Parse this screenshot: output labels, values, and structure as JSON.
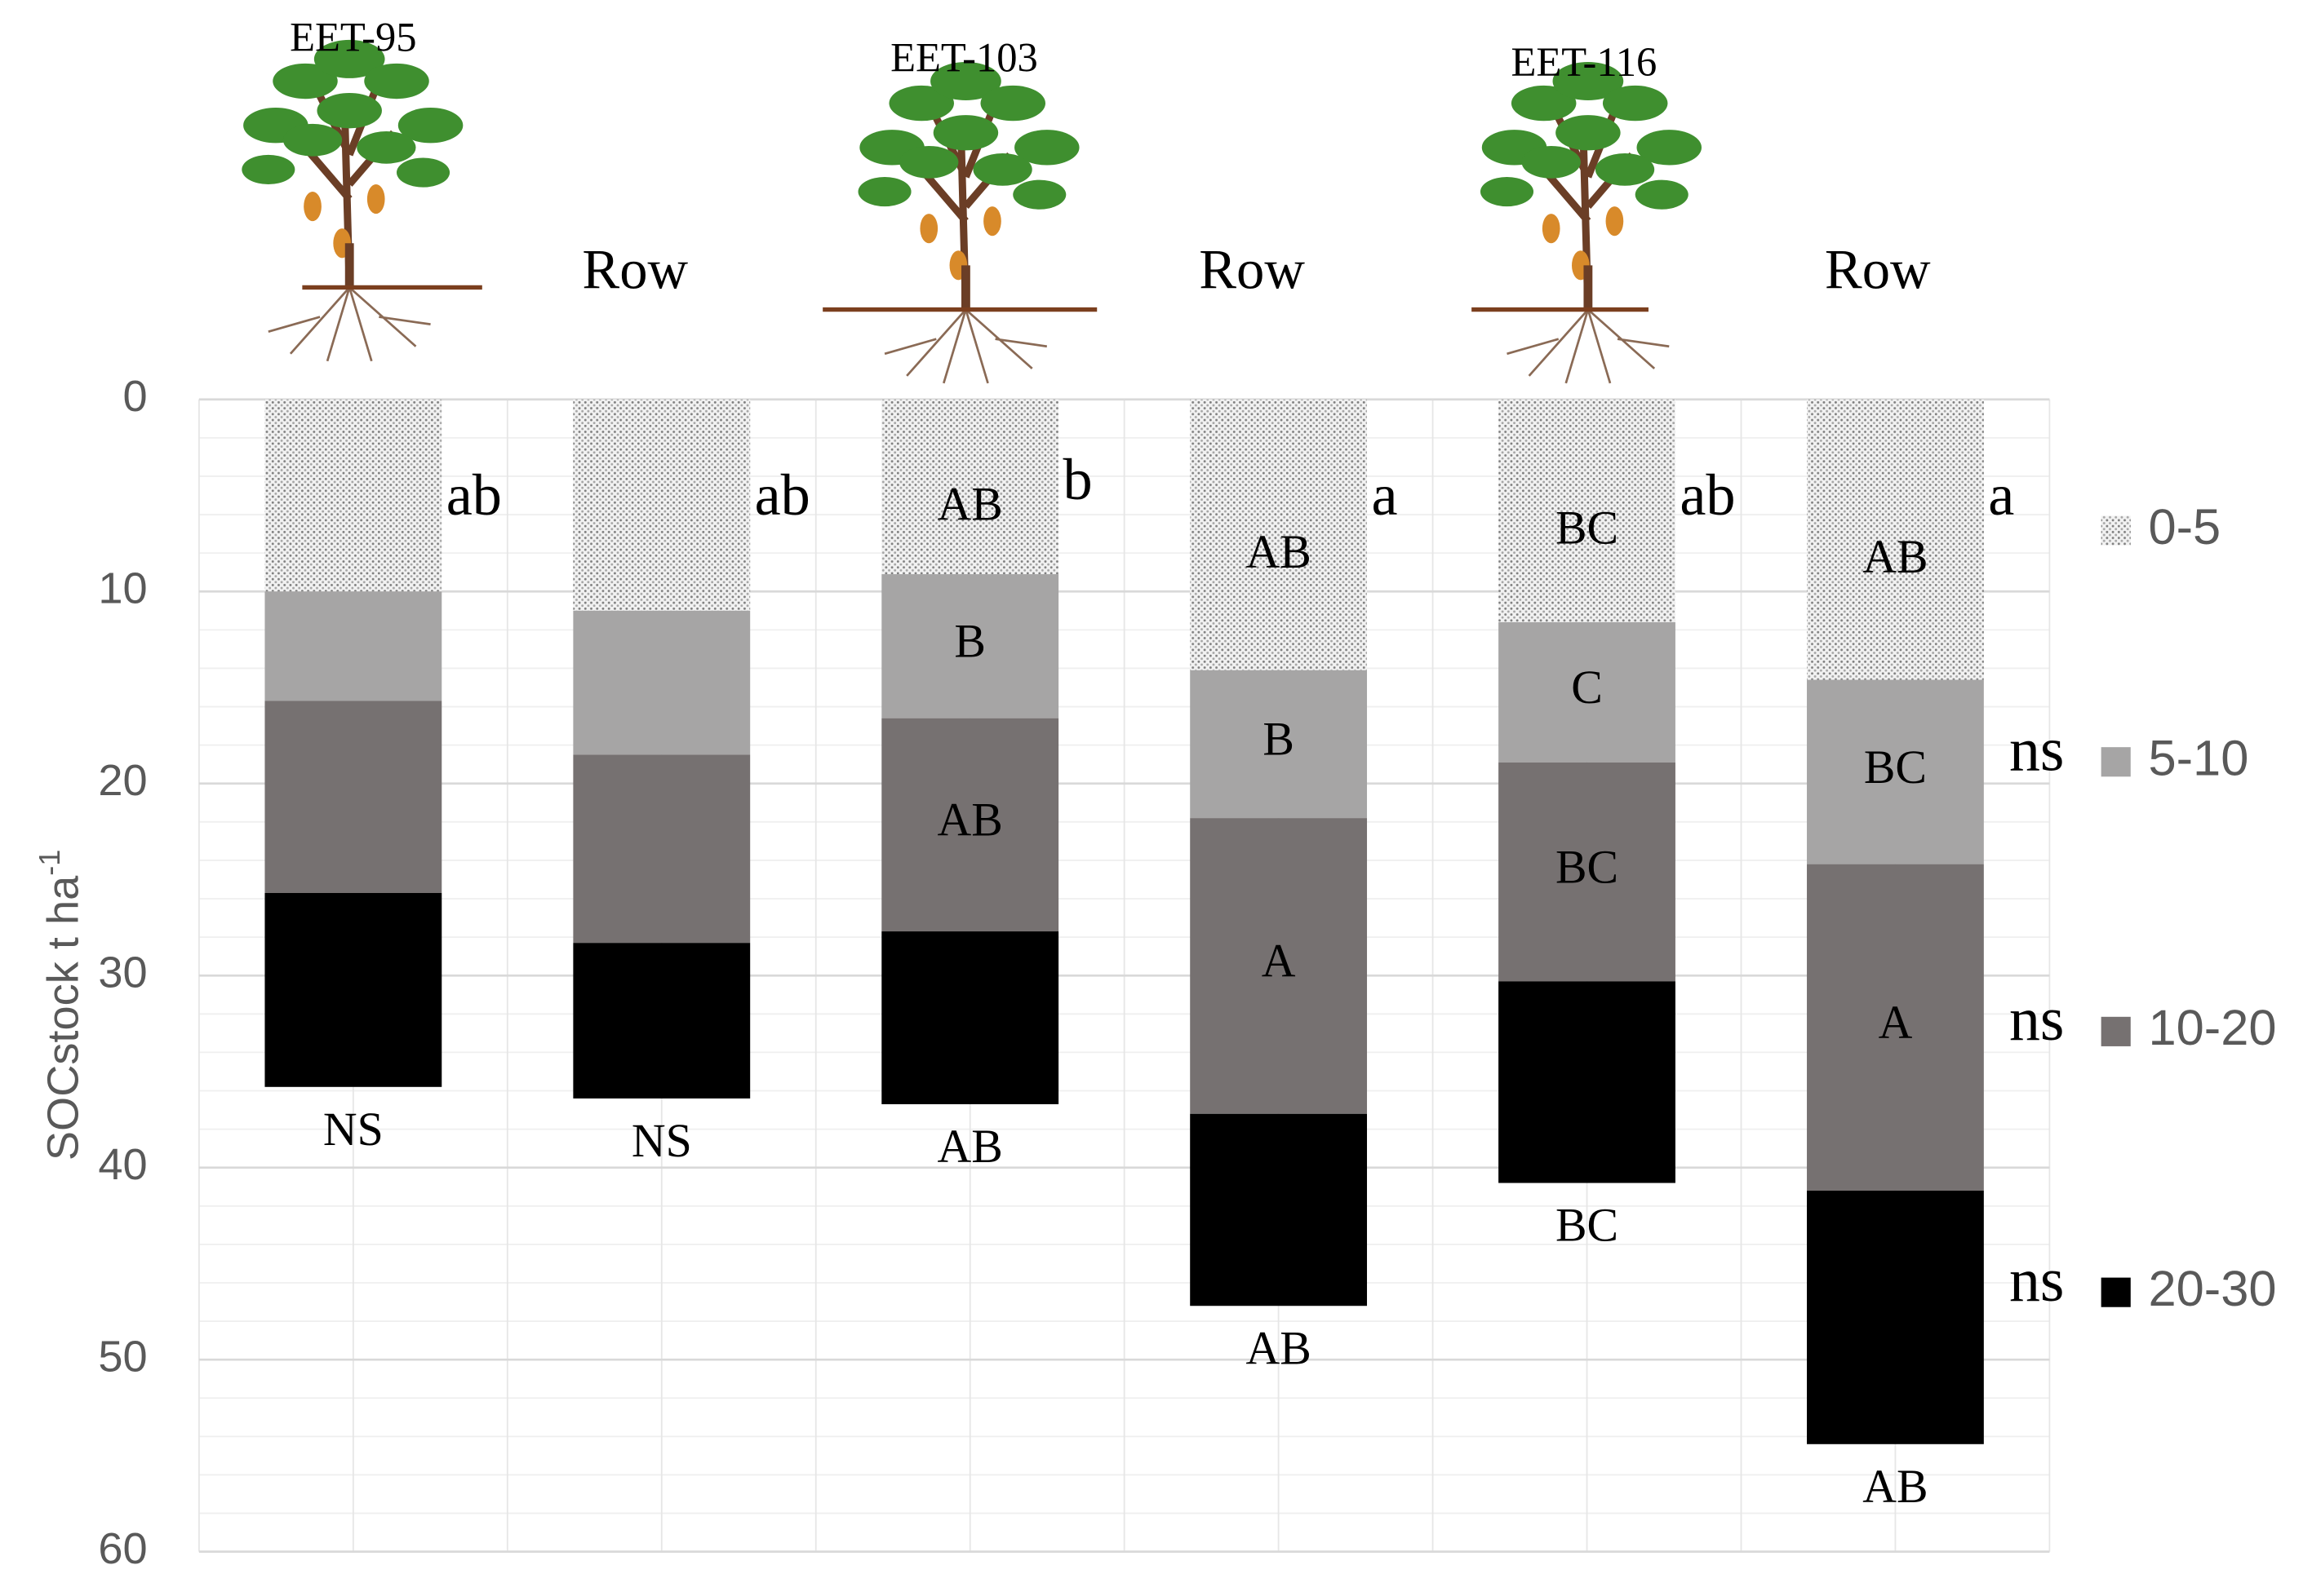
{
  "chart_data": {
    "type": "stacked_bar",
    "categories": [
      "EET-95",
      "Row",
      "EET-103",
      "Row",
      "EET-116",
      "Row"
    ],
    "ylabel": {
      "text": "SOCstock t ha",
      "sup": "-1"
    },
    "ylim": [
      0,
      60
    ],
    "y_inverted": true,
    "yticks": [
      0,
      10,
      20,
      30,
      40,
      50,
      60
    ],
    "grid": true,
    "legend": "right",
    "series": [
      {
        "name": "0-5",
        "color": "#d9d9d9",
        "pattern": "dotted",
        "values": [
          10.0,
          11.0,
          9.1,
          14.1,
          11.6,
          14.6
        ],
        "segment_labels": [
          null,
          null,
          "AB",
          "AB",
          "BC",
          "AB"
        ]
      },
      {
        "name": "5-10",
        "color": "#a6a5a5",
        "values": [
          5.7,
          7.5,
          7.5,
          7.7,
          7.3,
          9.6
        ],
        "segment_labels": [
          null,
          null,
          "B",
          "B",
          "C",
          "BC"
        ],
        "note": "ns"
      },
      {
        "name": "10-20",
        "color": "#767171",
        "values": [
          10.0,
          9.8,
          11.1,
          15.4,
          11.4,
          17.0
        ],
        "segment_labels": [
          null,
          null,
          "AB",
          "A",
          "BC",
          "A"
        ],
        "note": "ns"
      },
      {
        "name": "20-30",
        "color": "#000000",
        "values": [
          10.1,
          8.1,
          9.0,
          10.0,
          10.5,
          13.2
        ],
        "note": "ns"
      }
    ],
    "side_labels": [
      "ab",
      "ab",
      "b",
      "a",
      "ab",
      "a"
    ],
    "total_labels": [
      "NS",
      "NS",
      "AB",
      "AB",
      "BC",
      "AB"
    ]
  }
}
